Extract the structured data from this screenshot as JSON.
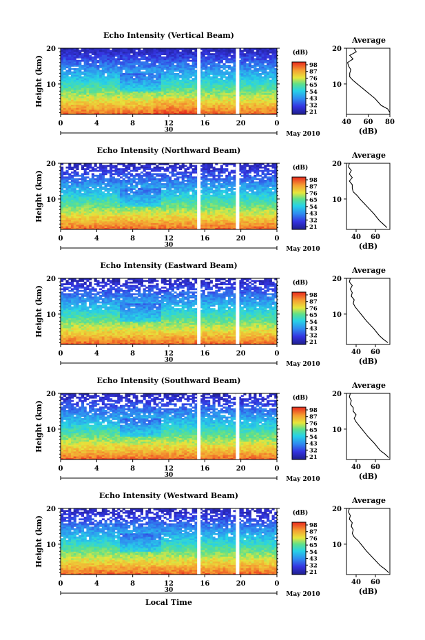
{
  "footer": {
    "xlabel": "Local Time"
  },
  "chart_data": [
    {
      "type": "heatmap",
      "title": "Echo Intensity (Vertical Beam)",
      "ylabel": "Height (km)",
      "yticks": [
        "20",
        "10"
      ],
      "xticks": [
        "0",
        "4",
        "8",
        "12",
        "16",
        "20",
        "0"
      ],
      "day_label": "30",
      "date_label": "May 2010",
      "ylim": [
        1.5,
        20
      ],
      "xlim": [
        0,
        24
      ],
      "gap_hours": [
        15.3,
        19.6
      ],
      "colorbar": {
        "label": "(dB)",
        "ticks": [
          "98",
          "87",
          "76",
          "65",
          "54",
          "43",
          "32",
          "21"
        ]
      },
      "profile": {
        "title": "Average",
        "xlabel": "(dB)",
        "xticks": [
          "40",
          "60",
          "80"
        ],
        "yticks": [
          "20",
          "10"
        ],
        "xlim": [
          40,
          80
        ],
        "heights": [
          2,
          3,
          4,
          6,
          8,
          10,
          11,
          12,
          13,
          14,
          15,
          16,
          17,
          18,
          19,
          20
        ],
        "values": [
          80,
          78,
          72,
          66,
          58,
          50,
          46,
          43,
          43,
          44,
          42,
          41,
          46,
          43,
          49,
          47
        ]
      }
    },
    {
      "type": "heatmap",
      "title": "Echo Intensity (Northward Beam)",
      "ylabel": "Height (km)",
      "yticks": [
        "20",
        "10"
      ],
      "xticks": [
        "0",
        "4",
        "8",
        "12",
        "16",
        "20",
        "0"
      ],
      "day_label": "30",
      "date_label": "May 2010",
      "ylim": [
        1.5,
        20
      ],
      "xlim": [
        0,
        24
      ],
      "gap_hours": [
        15.3,
        19.6
      ],
      "colorbar": {
        "label": "(dB)",
        "ticks": [
          "98",
          "87",
          "76",
          "65",
          "54",
          "43",
          "32",
          "21"
        ]
      },
      "profile": {
        "title": "Average",
        "xlabel": "(dB)",
        "xticks": [
          "40",
          "60"
        ],
        "yticks": [
          "20",
          "10"
        ],
        "xlim": [
          30,
          75
        ],
        "heights": [
          2,
          3,
          4,
          6,
          8,
          10,
          11,
          12,
          13,
          14,
          15,
          16,
          17,
          18,
          19,
          20
        ],
        "values": [
          72,
          68,
          64,
          58,
          51,
          44,
          41,
          37,
          36,
          36,
          33,
          36,
          33,
          35,
          32,
          33
        ]
      }
    },
    {
      "type": "heatmap",
      "title": "Echo Intensity (Eastward Beam)",
      "ylabel": "Height (km)",
      "yticks": [
        "20",
        "10"
      ],
      "xticks": [
        "0",
        "4",
        "8",
        "12",
        "16",
        "20",
        "0"
      ],
      "day_label": "30",
      "date_label": "May 2010",
      "ylim": [
        1.5,
        20
      ],
      "xlim": [
        0,
        24
      ],
      "gap_hours": [
        15.3,
        19.6
      ],
      "colorbar": {
        "label": "(dB)",
        "ticks": [
          "98",
          "87",
          "76",
          "65",
          "54",
          "43",
          "32",
          "21"
        ]
      },
      "profile": {
        "title": "Average",
        "xlabel": "(dB)",
        "xticks": [
          "40",
          "60"
        ],
        "yticks": [
          "20",
          "10"
        ],
        "xlim": [
          30,
          75
        ],
        "heights": [
          2,
          3,
          4,
          6,
          8,
          10,
          11,
          12,
          13,
          14,
          15,
          16,
          17,
          18,
          19,
          20
        ],
        "values": [
          73,
          68,
          64,
          58,
          51,
          45,
          42,
          39,
          37,
          38,
          35,
          36,
          34,
          36,
          33,
          34
        ]
      }
    },
    {
      "type": "heatmap",
      "title": "Echo Intensity (Southward Beam)",
      "ylabel": "Height (km)",
      "yticks": [
        "20",
        "10"
      ],
      "xticks": [
        "0",
        "4",
        "8",
        "12",
        "16",
        "20",
        "0"
      ],
      "day_label": "30",
      "date_label": "May 2010",
      "ylim": [
        1.5,
        20
      ],
      "xlim": [
        0,
        24
      ],
      "gap_hours": [
        15.3,
        19.6
      ],
      "colorbar": {
        "label": "(dB)",
        "ticks": [
          "98",
          "87",
          "76",
          "65",
          "54",
          "43",
          "32",
          "21"
        ]
      },
      "profile": {
        "title": "Average",
        "xlabel": "(dB)",
        "xticks": [
          "40",
          "60"
        ],
        "yticks": [
          "20",
          "10"
        ],
        "xlim": [
          30,
          75
        ],
        "heights": [
          2,
          3,
          4,
          6,
          8,
          10,
          11,
          12,
          13,
          14,
          15,
          16,
          17,
          18,
          19,
          20
        ],
        "values": [
          74,
          70,
          65,
          59,
          52,
          46,
          43,
          40,
          38,
          40,
          37,
          37,
          34,
          35,
          33,
          34
        ]
      }
    },
    {
      "type": "heatmap",
      "title": "Echo Intensity (Westward Beam)",
      "ylabel": "Height (km)",
      "yticks": [
        "20",
        "10"
      ],
      "xticks": [
        "0",
        "4",
        "8",
        "12",
        "16",
        "20",
        "0"
      ],
      "day_label": "30",
      "date_label": "May 2010",
      "ylim": [
        1.5,
        20
      ],
      "xlim": [
        0,
        24
      ],
      "gap_hours": [
        15.3,
        19.6
      ],
      "colorbar": {
        "label": "(dB)",
        "ticks": [
          "98",
          "87",
          "76",
          "65",
          "54",
          "43",
          "32",
          "21"
        ]
      },
      "profile": {
        "title": "Average",
        "xlabel": "(dB)",
        "xticks": [
          "40",
          "60"
        ],
        "yticks": [
          "20",
          "10"
        ],
        "xlim": [
          30,
          75
        ],
        "heights": [
          2,
          3,
          4,
          6,
          8,
          10,
          11,
          12,
          13,
          14,
          15,
          16,
          17,
          18,
          19,
          20
        ],
        "values": [
          74,
          70,
          65,
          58,
          51,
          45,
          42,
          38,
          36,
          37,
          35,
          36,
          33,
          34,
          32,
          33
        ]
      }
    }
  ]
}
